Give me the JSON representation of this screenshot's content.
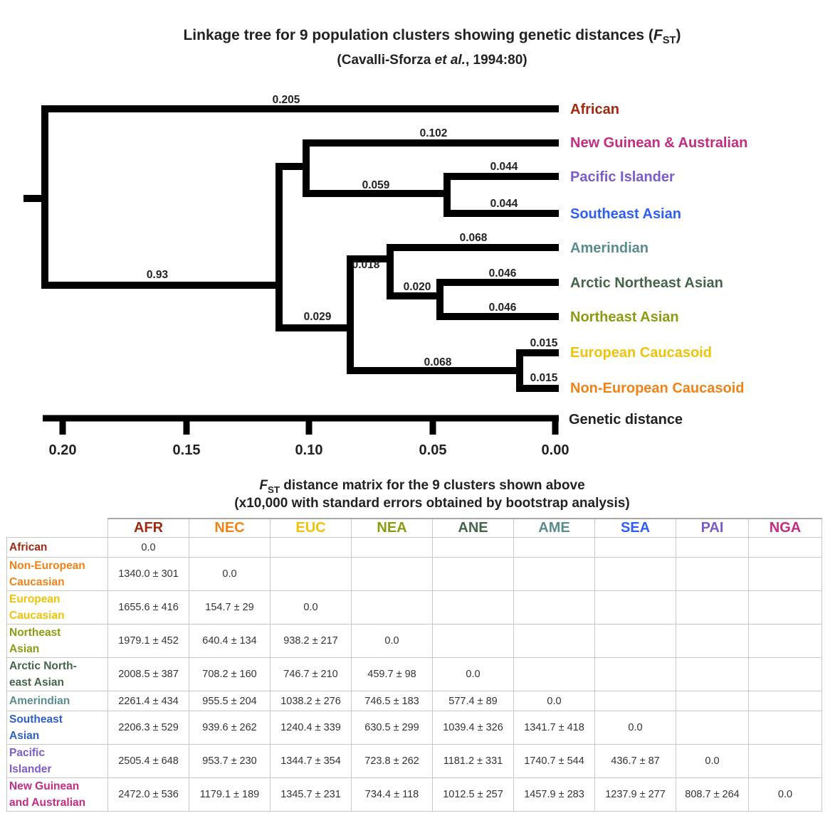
{
  "title_main": "Linkage tree for 9 population clusters showing genetic distances (",
  "title_F": "F",
  "title_sub": "ST",
  "title_close": ")",
  "subtitle_pre": "(Cavalli-Sforza ",
  "subtitle_etal": "et al.",
  "subtitle_post": ", 1994:80)",
  "tree": {
    "leaves": [
      {
        "label": "African",
        "color": "#a0290f"
      },
      {
        "label": "New Guinean & Australian",
        "color": "#c42c82"
      },
      {
        "label": "Pacific Islander",
        "color": "#7c5bcc"
      },
      {
        "label": "Southeast Asian",
        "color": "#2e5ff2"
      },
      {
        "label": "Amerindian",
        "color": "#5a8c8f"
      },
      {
        "label": "Arctic Northeast Asian",
        "color": "#44654a"
      },
      {
        "label": "Northeast Asian",
        "color": "#8c9c12"
      },
      {
        "label": "European Caucasoid",
        "color": "#f2c20a"
      },
      {
        "label": "Non-European Caucasoid",
        "color": "#f28218"
      }
    ],
    "branch_labels": {
      "african": "0.205",
      "ngu_aus": "0.102",
      "pac": "0.044",
      "sea": "0.044",
      "pac_sea": "0.059",
      "ame": "0.068",
      "arc": "0.046",
      "nea": "0.046",
      "arc_nea": "0.020",
      "ame_group": "0.018",
      "euc": "0.015",
      "nec": "0.015",
      "cauc": "0.068",
      "mid": "0.029",
      "root_low": "0.93"
    },
    "axis_label": "Genetic distance",
    "axis_ticks": [
      "0.20",
      "0.15",
      "0.10",
      "0.05",
      "0.00"
    ]
  },
  "matrix": {
    "title_F": "F",
    "title_sub": "ST",
    "title_rest": " distance matrix for the 9 clusters shown above",
    "title_line2": "(x10,000 with standard errors obtained by bootstrap analysis)",
    "columns": [
      {
        "code": "AFR",
        "color": "#a0290f"
      },
      {
        "code": "NEC",
        "color": "#f28218"
      },
      {
        "code": "EUC",
        "color": "#f2c20a"
      },
      {
        "code": "NEA",
        "color": "#8c9c12"
      },
      {
        "code": "ANE",
        "color": "#44654a"
      },
      {
        "code": "AME",
        "color": "#5a8c8f"
      },
      {
        "code": "SEA",
        "color": "#2e5ff2"
      },
      {
        "code": "PAI",
        "color": "#7c5bcc"
      },
      {
        "code": "NGA",
        "color": "#c42c82"
      }
    ],
    "rows": [
      {
        "label": [
          "African"
        ],
        "color": "#a0290f",
        "cells": [
          "0.0"
        ]
      },
      {
        "label": [
          "Non-European",
          "Caucasian"
        ],
        "color": "#f28218",
        "cells": [
          "1340.0 ± 301",
          "0.0"
        ]
      },
      {
        "label": [
          "European",
          "Caucasian"
        ],
        "color": "#f2c20a",
        "cells": [
          "1655.6 ± 416",
          "154.7 ± 29",
          "0.0"
        ]
      },
      {
        "label": [
          "Northeast",
          "Asian"
        ],
        "color": "#8c9c12",
        "cells": [
          "1979.1 ± 452",
          "640.4 ± 134",
          "938.2 ± 217",
          "0.0"
        ]
      },
      {
        "label": [
          "Arctic North-",
          "east Asian"
        ],
        "color": "#44654a",
        "cells": [
          "2008.5 ± 387",
          "708.2 ± 160",
          "746.7 ± 210",
          "459.7 ± 98",
          "0.0"
        ]
      },
      {
        "label": [
          "Amerindian"
        ],
        "color": "#5a8c8f",
        "cells": [
          "2261.4 ± 434",
          "955.5 ± 204",
          "1038.2 ± 276",
          "746.5 ± 183",
          "577.4 ± 89",
          "0.0"
        ]
      },
      {
        "label": [
          "Southeast",
          "Asian"
        ],
        "color": "#2e5fcc",
        "cells": [
          "2206.3 ± 529",
          "939.6 ± 262",
          "1240.4 ± 339",
          "630.5 ± 299",
          "1039.4 ± 326",
          "1341.7 ± 418",
          "0.0"
        ]
      },
      {
        "label": [
          "Pacific",
          "Islander"
        ],
        "color": "#7c5bcc",
        "cells": [
          "2505.4 ± 648",
          "953.7 ± 230",
          "1344.7 ± 354",
          "723.8 ± 262",
          "1181.2 ± 331",
          "1740.7 ± 544",
          "436.7 ± 87",
          "0.0"
        ]
      },
      {
        "label": [
          "New Guinean",
          "and Australian"
        ],
        "color": "#c42c82",
        "cells": [
          "2472.0 ± 536",
          "1179.1 ± 189",
          "1345.7 ± 231",
          "734.4 ± 118",
          "1012.5 ± 257",
          "1457.9 ± 283",
          "1237.9 ± 277",
          "808.7 ± 264",
          "0.0"
        ]
      }
    ]
  }
}
